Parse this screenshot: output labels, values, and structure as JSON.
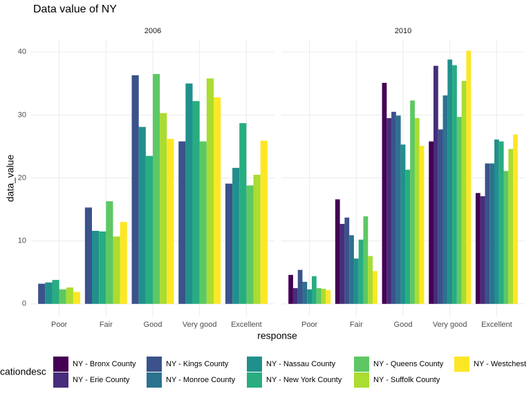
{
  "chart_data": {
    "type": "bar",
    "title": "Data value of NY",
    "x_label": "response",
    "y_label": "data_value",
    "facets": [
      "2006",
      "2010"
    ],
    "categories": [
      "Poor",
      "Fair",
      "Good",
      "Very good",
      "Excellent"
    ],
    "ylim": [
      -2,
      42
    ],
    "yticks": [
      0,
      10,
      20,
      30,
      40
    ],
    "grid": true,
    "legend_title": "cationdesc",
    "legend_position": "bottom",
    "series": [
      {
        "name": "NY - Bronx County",
        "color": "#440154",
        "values": [
          [
            null,
            null,
            null,
            null,
            null
          ],
          [
            4.6,
            16.6,
            35.1,
            25.8,
            17.6
          ]
        ]
      },
      {
        "name": "NY - Erie County",
        "color": "#472d7b",
        "values": [
          [
            null,
            null,
            null,
            null,
            null
          ],
          [
            2.5,
            12.7,
            29.5,
            37.8,
            17.1
          ]
        ]
      },
      {
        "name": "NY - Kings County",
        "color": "#3b528b",
        "values": [
          [
            3.2,
            15.3,
            36.3,
            25.8,
            19.1
          ],
          [
            5.4,
            13.7,
            30.5,
            27.7,
            22.3
          ]
        ]
      },
      {
        "name": "NY - Monroe County",
        "color": "#2c728e",
        "values": [
          [
            null,
            null,
            null,
            null,
            null
          ],
          [
            3.5,
            10.9,
            29.9,
            33.1,
            22.3
          ]
        ]
      },
      {
        "name": "NY - Nassau County",
        "color": "#21908c",
        "values": [
          [
            3.4,
            11.6,
            28.1,
            35.0,
            21.6
          ],
          [
            2.3,
            7.2,
            25.3,
            38.8,
            26.1
          ]
        ]
      },
      {
        "name": "NY - New York County",
        "color": "#27ad81",
        "values": [
          [
            3.8,
            11.5,
            23.5,
            32.2,
            28.7
          ],
          [
            4.4,
            10.2,
            21.3,
            37.9,
            25.8
          ]
        ]
      },
      {
        "name": "NY - Queens County",
        "color": "#5dc863",
        "values": [
          [
            2.3,
            16.3,
            36.5,
            25.8,
            18.8
          ],
          [
            2.5,
            13.9,
            32.3,
            29.7,
            21.1
          ]
        ]
      },
      {
        "name": "NY - Suffolk County",
        "color": "#aadc32",
        "values": [
          [
            2.6,
            10.7,
            30.3,
            35.8,
            20.5
          ],
          [
            2.4,
            7.6,
            29.5,
            35.4,
            24.6
          ]
        ]
      },
      {
        "name": "NY - Westchest",
        "color": "#fde725",
        "values": [
          [
            1.9,
            13.0,
            26.2,
            32.8,
            25.9
          ],
          [
            2.2,
            5.2,
            25.1,
            40.2,
            26.9
          ]
        ]
      }
    ]
  }
}
